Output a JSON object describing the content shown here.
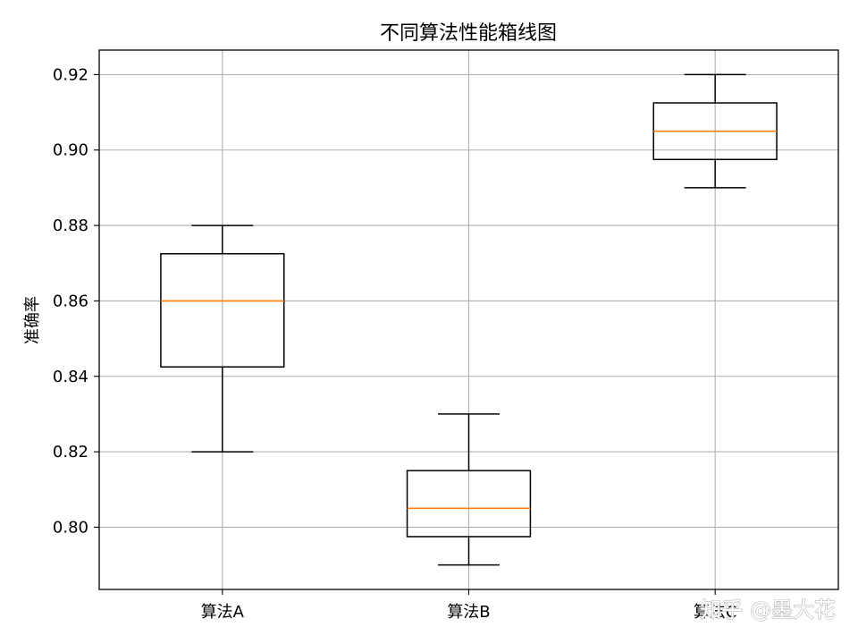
{
  "chart_data": {
    "type": "box",
    "title": "不同算法性能箱线图",
    "xlabel": "",
    "ylabel": "准确率",
    "ylim": [
      0.7835,
      0.9265
    ],
    "yticks": [
      "0.80",
      "0.82",
      "0.84",
      "0.86",
      "0.88",
      "0.90",
      "0.92"
    ],
    "grid": true,
    "categories": [
      "算法A",
      "算法B",
      "算法C"
    ],
    "boxes": [
      {
        "name": "算法A",
        "whisker_low": 0.82,
        "q1": 0.8425,
        "median": 0.86,
        "q3": 0.8725,
        "whisker_high": 0.88
      },
      {
        "name": "算法B",
        "whisker_low": 0.79,
        "q1": 0.7975,
        "median": 0.805,
        "q3": 0.815,
        "whisker_high": 0.83
      },
      {
        "name": "算法C",
        "whisker_low": 0.89,
        "q1": 0.8975,
        "median": 0.905,
        "q3": 0.9125,
        "whisker_high": 0.92
      }
    ],
    "colors": {
      "box": "#000000",
      "median": "#ff7f0e",
      "grid": "#b0b0b0"
    }
  },
  "watermark": "知乎 @墨大花"
}
